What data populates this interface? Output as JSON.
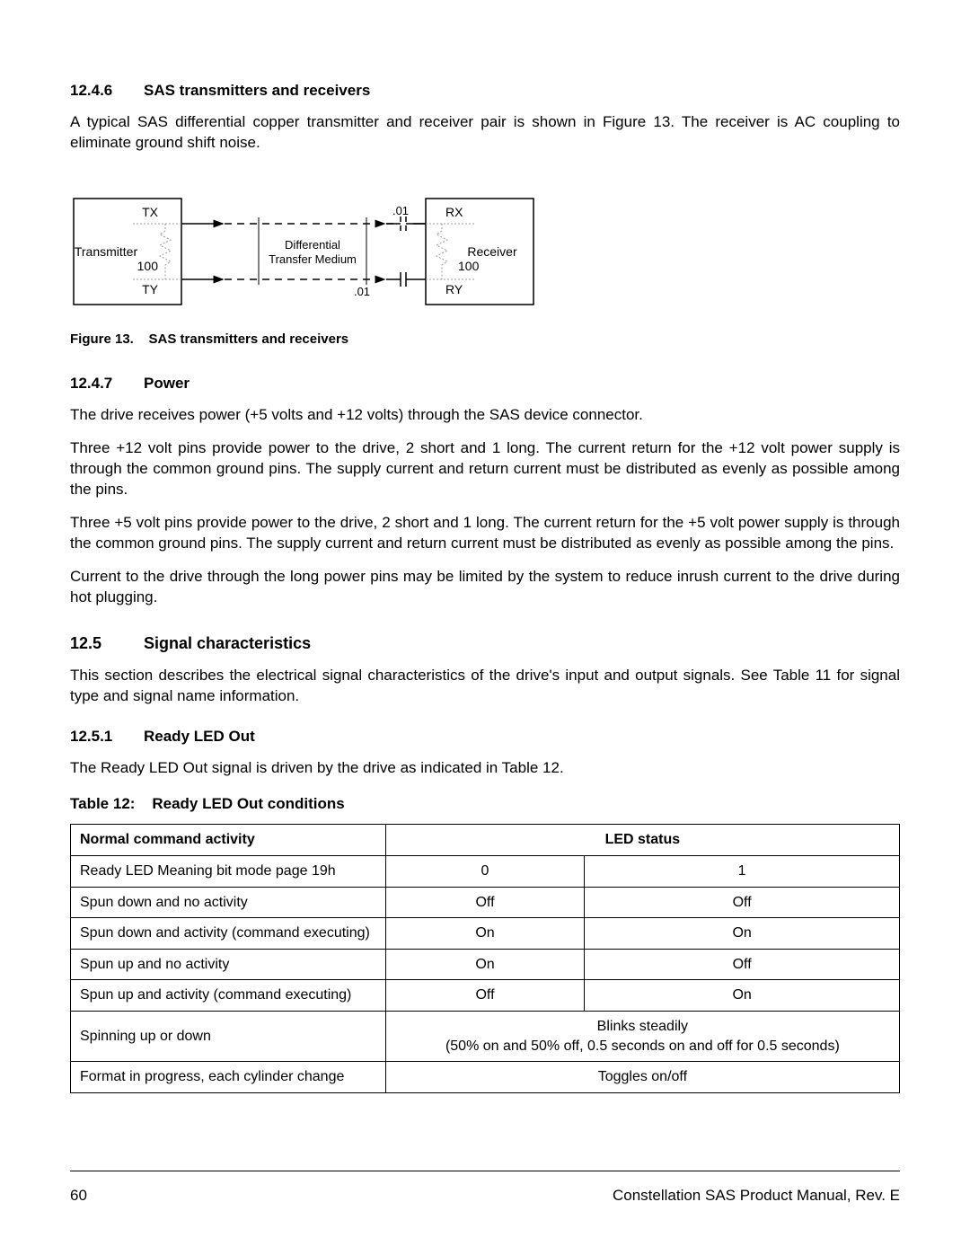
{
  "sec_1246": {
    "num": "12.4.6",
    "title": "SAS transmitters and receivers"
  },
  "para_1246": "A typical SAS differential copper transmitter and receiver pair is shown in Figure 13. The receiver is AC coupling to eliminate ground shift noise.",
  "figure13": {
    "caption_prefix": "Figure 13.",
    "caption_text": "SAS transmitters and receivers",
    "tx_box_label": "Transmitter",
    "rx_box_label": "Receiver",
    "tx_top": "TX",
    "tx_bot": "TY",
    "rx_top": "RX",
    "rx_bot": "RY",
    "imp": "100",
    "cap": ".01",
    "medium_l1": "Differential",
    "medium_l2": "Transfer Medium"
  },
  "sec_1247": {
    "num": "12.4.7",
    "title": "Power"
  },
  "para_1247_a": "The drive receives power (+5 volts and +12 volts) through the SAS device connector.",
  "para_1247_b": "Three +12 volt pins provide power to the drive, 2 short and 1 long. The current return for the +12 volt power supply is through the common ground pins. The supply current and return current must be distributed as evenly as possible among the pins.",
  "para_1247_c": "Three +5 volt pins provide power to the drive, 2 short and 1 long. The current return for the +5 volt power supply is through the common ground pins. The supply current and return current must be distributed as evenly as possible among the pins.",
  "para_1247_d": "Current to the drive through the long power pins may be limited by the system to reduce inrush current to the drive during hot plugging.",
  "sec_125": {
    "num": "12.5",
    "title": "Signal characteristics"
  },
  "para_125": "This section describes the electrical signal characteristics of the drive's input and output signals. See Table 11 for signal type and signal name information.",
  "sec_1251": {
    "num": "12.5.1",
    "title": "Ready LED Out"
  },
  "para_1251": "The Ready LED Out signal is driven by the drive as indicated in Table 12.",
  "table12": {
    "caption_prefix": "Table 12:",
    "caption_text": "Ready LED Out conditions",
    "header_col1": "Normal command activity",
    "header_col2": "LED status",
    "rows": [
      {
        "c1": "Ready LED Meaning bit mode page 19h",
        "c2": "0",
        "c3": "1"
      },
      {
        "c1": "Spun down and no activity",
        "c2": "Off",
        "c3": "Off"
      },
      {
        "c1": "Spun down and activity (command executing)",
        "c2": "On",
        "c3": "On"
      },
      {
        "c1": "Spun up and no activity",
        "c2": "On",
        "c3": "Off"
      },
      {
        "c1": "Spun up and activity (command executing)",
        "c2": "Off",
        "c3": "On"
      }
    ],
    "row_span_a": {
      "c1": "Spinning up or down",
      "l1": "Blinks steadily",
      "l2": "(50% on and 50% off, 0.5 seconds on and off for 0.5 seconds)"
    },
    "row_span_b": {
      "c1": "Format in progress, each cylinder change",
      "c2": "Toggles on/off"
    }
  },
  "footer": {
    "page": "60",
    "title": "Constellation SAS Product Manual, Rev. E"
  }
}
